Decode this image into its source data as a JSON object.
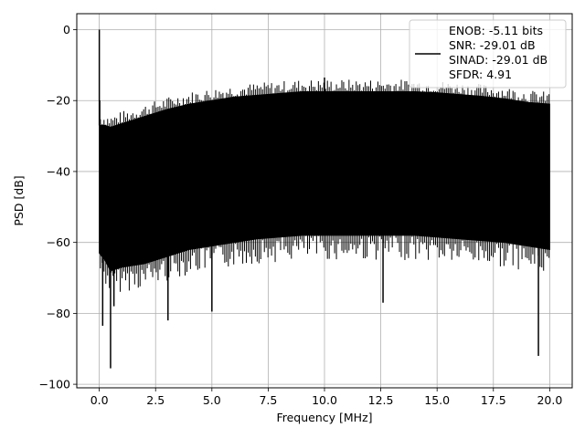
{
  "chart_data": {
    "type": "line",
    "title": "",
    "xlabel": "Frequency [MHz]",
    "ylabel": "PSD [dB]",
    "xlim": [
      -1.0,
      21.0
    ],
    "ylim": [
      -101.0,
      4.5
    ],
    "xticks": [
      0.0,
      2.5,
      5.0,
      7.5,
      10.0,
      12.5,
      15.0,
      17.5,
      20.0
    ],
    "xtick_labels": [
      "0.0",
      "2.5",
      "5.0",
      "7.5",
      "10.0",
      "12.5",
      "15.0",
      "17.5",
      "20.0"
    ],
    "yticks": [
      0,
      -20,
      -40,
      -60,
      -80,
      -100
    ],
    "ytick_labels": [
      "0",
      "−20",
      "−40",
      "−60",
      "−80",
      "−100"
    ],
    "grid": true,
    "legend_position": "top-right",
    "legend_lines": [
      "ENOB: -5.11 bits",
      "SNR: -29.01 dB",
      "SINAD: -29.01 dB",
      "SFDR: 4.91"
    ],
    "series": [
      {
        "color": "#000000",
        "upper_envelope": {
          "x": [
            0.0,
            0.25,
            0.5,
            1.0,
            2.0,
            3.0,
            4.0,
            5.0,
            6.0,
            7.0,
            8.0,
            9.0,
            10.0,
            11.0,
            12.0,
            13.0,
            14.0,
            15.0,
            16.0,
            17.0,
            18.0,
            19.0,
            20.0
          ],
          "y": [
            -27,
            -27,
            -27.5,
            -26.5,
            -24.5,
            -22.5,
            -21,
            -20,
            -19,
            -18.5,
            -18,
            -17.5,
            -17.5,
            -17.5,
            -17.5,
            -17.5,
            -17.5,
            -17.8,
            -18.3,
            -18.8,
            -19.5,
            -20.5,
            -21
          ]
        },
        "lower_envelope": {
          "x": [
            0.0,
            0.25,
            0.5,
            1.0,
            2.0,
            3.0,
            4.0,
            5.0,
            6.0,
            7.0,
            8.0,
            9.0,
            10.0,
            11.0,
            12.0,
            13.0,
            14.0,
            15.0,
            16.0,
            17.0,
            18.0,
            19.0,
            20.0
          ],
          "y": [
            -63,
            -65,
            -68,
            -67,
            -66,
            -64,
            -62,
            -61,
            -60,
            -59,
            -58.5,
            -58,
            -58,
            -58,
            -58,
            -58,
            -58,
            -58.5,
            -59,
            -59.5,
            -60,
            -61,
            -62
          ]
        },
        "spikes": [
          {
            "x": 0.0,
            "y": 0
          },
          {
            "x": 0.02,
            "y": -20
          },
          {
            "x": 0.15,
            "y": -83.5
          },
          {
            "x": 0.5,
            "y": -95.5
          },
          {
            "x": 0.65,
            "y": -78
          },
          {
            "x": 3.05,
            "y": -82
          },
          {
            "x": 5.0,
            "y": -79.5
          },
          {
            "x": 10.0,
            "y": -13.5
          },
          {
            "x": 12.6,
            "y": -77
          },
          {
            "x": 19.5,
            "y": -92
          }
        ]
      }
    ]
  }
}
